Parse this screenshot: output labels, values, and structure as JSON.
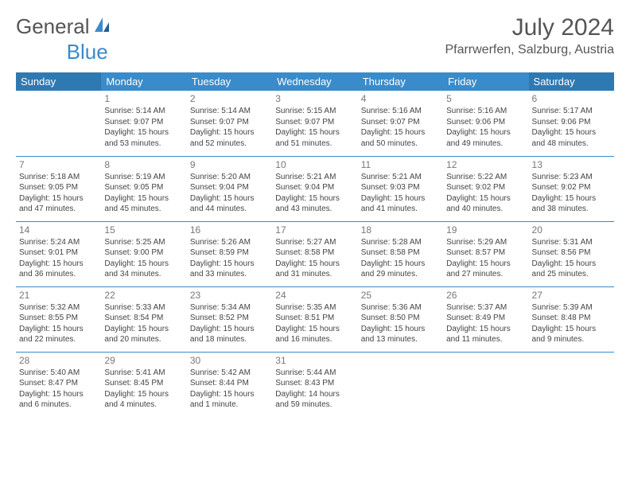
{
  "logo": {
    "text1": "General",
    "text2": "Blue"
  },
  "title": "July 2024",
  "location": "Pfarrwerfen, Salzburg, Austria",
  "colors": {
    "header_bg": "#3a8bc9",
    "header_bg_weekend": "#2f79b3",
    "header_text": "#ffffff",
    "border": "#3a8bc9",
    "daynum": "#777777",
    "body_text": "#444444"
  },
  "weekdays": [
    "Sunday",
    "Monday",
    "Tuesday",
    "Wednesday",
    "Thursday",
    "Friday",
    "Saturday"
  ],
  "weeks": [
    [
      null,
      {
        "n": "1",
        "sr": "5:14 AM",
        "ss": "9:07 PM",
        "dl1": "Daylight: 15 hours",
        "dl2": "and 53 minutes."
      },
      {
        "n": "2",
        "sr": "5:14 AM",
        "ss": "9:07 PM",
        "dl1": "Daylight: 15 hours",
        "dl2": "and 52 minutes."
      },
      {
        "n": "3",
        "sr": "5:15 AM",
        "ss": "9:07 PM",
        "dl1": "Daylight: 15 hours",
        "dl2": "and 51 minutes."
      },
      {
        "n": "4",
        "sr": "5:16 AM",
        "ss": "9:07 PM",
        "dl1": "Daylight: 15 hours",
        "dl2": "and 50 minutes."
      },
      {
        "n": "5",
        "sr": "5:16 AM",
        "ss": "9:06 PM",
        "dl1": "Daylight: 15 hours",
        "dl2": "and 49 minutes."
      },
      {
        "n": "6",
        "sr": "5:17 AM",
        "ss": "9:06 PM",
        "dl1": "Daylight: 15 hours",
        "dl2": "and 48 minutes."
      }
    ],
    [
      {
        "n": "7",
        "sr": "5:18 AM",
        "ss": "9:05 PM",
        "dl1": "Daylight: 15 hours",
        "dl2": "and 47 minutes."
      },
      {
        "n": "8",
        "sr": "5:19 AM",
        "ss": "9:05 PM",
        "dl1": "Daylight: 15 hours",
        "dl2": "and 45 minutes."
      },
      {
        "n": "9",
        "sr": "5:20 AM",
        "ss": "9:04 PM",
        "dl1": "Daylight: 15 hours",
        "dl2": "and 44 minutes."
      },
      {
        "n": "10",
        "sr": "5:21 AM",
        "ss": "9:04 PM",
        "dl1": "Daylight: 15 hours",
        "dl2": "and 43 minutes."
      },
      {
        "n": "11",
        "sr": "5:21 AM",
        "ss": "9:03 PM",
        "dl1": "Daylight: 15 hours",
        "dl2": "and 41 minutes."
      },
      {
        "n": "12",
        "sr": "5:22 AM",
        "ss": "9:02 PM",
        "dl1": "Daylight: 15 hours",
        "dl2": "and 40 minutes."
      },
      {
        "n": "13",
        "sr": "5:23 AM",
        "ss": "9:02 PM",
        "dl1": "Daylight: 15 hours",
        "dl2": "and 38 minutes."
      }
    ],
    [
      {
        "n": "14",
        "sr": "5:24 AM",
        "ss": "9:01 PM",
        "dl1": "Daylight: 15 hours",
        "dl2": "and 36 minutes."
      },
      {
        "n": "15",
        "sr": "5:25 AM",
        "ss": "9:00 PM",
        "dl1": "Daylight: 15 hours",
        "dl2": "and 34 minutes."
      },
      {
        "n": "16",
        "sr": "5:26 AM",
        "ss": "8:59 PM",
        "dl1": "Daylight: 15 hours",
        "dl2": "and 33 minutes."
      },
      {
        "n": "17",
        "sr": "5:27 AM",
        "ss": "8:58 PM",
        "dl1": "Daylight: 15 hours",
        "dl2": "and 31 minutes."
      },
      {
        "n": "18",
        "sr": "5:28 AM",
        "ss": "8:58 PM",
        "dl1": "Daylight: 15 hours",
        "dl2": "and 29 minutes."
      },
      {
        "n": "19",
        "sr": "5:29 AM",
        "ss": "8:57 PM",
        "dl1": "Daylight: 15 hours",
        "dl2": "and 27 minutes."
      },
      {
        "n": "20",
        "sr": "5:31 AM",
        "ss": "8:56 PM",
        "dl1": "Daylight: 15 hours",
        "dl2": "and 25 minutes."
      }
    ],
    [
      {
        "n": "21",
        "sr": "5:32 AM",
        "ss": "8:55 PM",
        "dl1": "Daylight: 15 hours",
        "dl2": "and 22 minutes."
      },
      {
        "n": "22",
        "sr": "5:33 AM",
        "ss": "8:54 PM",
        "dl1": "Daylight: 15 hours",
        "dl2": "and 20 minutes."
      },
      {
        "n": "23",
        "sr": "5:34 AM",
        "ss": "8:52 PM",
        "dl1": "Daylight: 15 hours",
        "dl2": "and 18 minutes."
      },
      {
        "n": "24",
        "sr": "5:35 AM",
        "ss": "8:51 PM",
        "dl1": "Daylight: 15 hours",
        "dl2": "and 16 minutes."
      },
      {
        "n": "25",
        "sr": "5:36 AM",
        "ss": "8:50 PM",
        "dl1": "Daylight: 15 hours",
        "dl2": "and 13 minutes."
      },
      {
        "n": "26",
        "sr": "5:37 AM",
        "ss": "8:49 PM",
        "dl1": "Daylight: 15 hours",
        "dl2": "and 11 minutes."
      },
      {
        "n": "27",
        "sr": "5:39 AM",
        "ss": "8:48 PM",
        "dl1": "Daylight: 15 hours",
        "dl2": "and 9 minutes."
      }
    ],
    [
      {
        "n": "28",
        "sr": "5:40 AM",
        "ss": "8:47 PM",
        "dl1": "Daylight: 15 hours",
        "dl2": "and 6 minutes."
      },
      {
        "n": "29",
        "sr": "5:41 AM",
        "ss": "8:45 PM",
        "dl1": "Daylight: 15 hours",
        "dl2": "and 4 minutes."
      },
      {
        "n": "30",
        "sr": "5:42 AM",
        "ss": "8:44 PM",
        "dl1": "Daylight: 15 hours",
        "dl2": "and 1 minute."
      },
      {
        "n": "31",
        "sr": "5:44 AM",
        "ss": "8:43 PM",
        "dl1": "Daylight: 14 hours",
        "dl2": "and 59 minutes."
      },
      null,
      null,
      null
    ]
  ]
}
